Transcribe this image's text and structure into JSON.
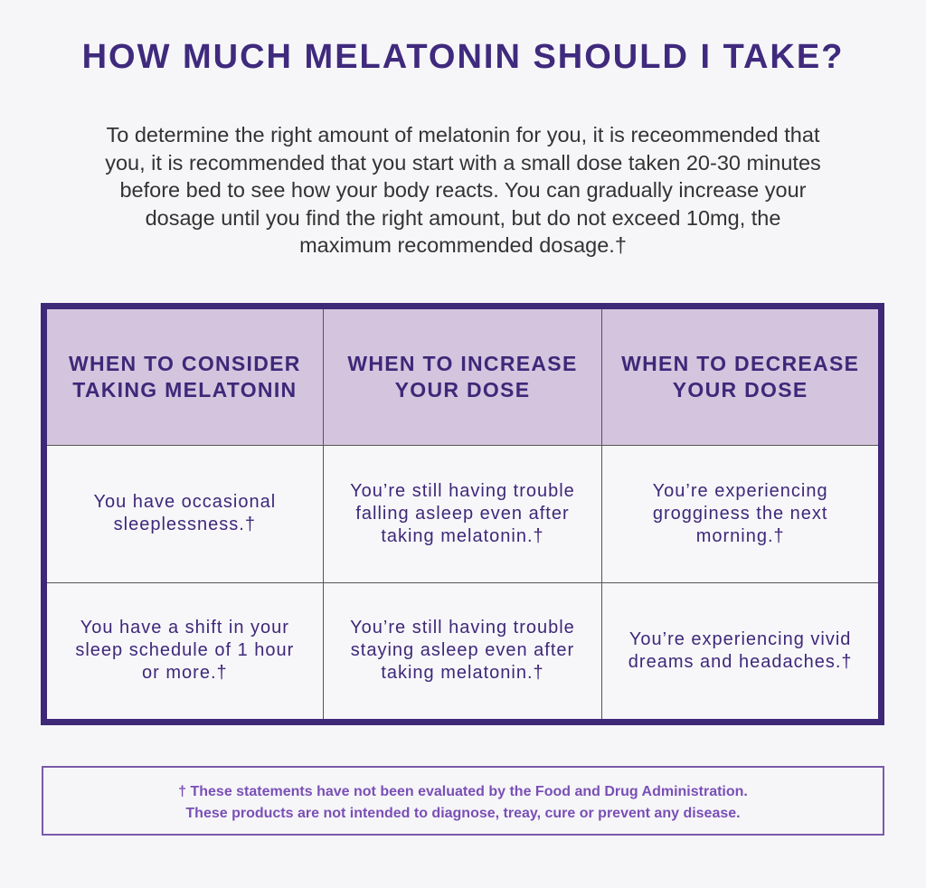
{
  "header": {
    "title": "HOW MUCH MELATONIN SHOULD I TAKE?"
  },
  "intro": {
    "lines": [
      "To determine the right amount of melatonin for you, it is receommended that",
      "you, it is recommended that you start with a small dose taken 20-30 minutes",
      "before bed to see how your body reacts. You can gradually increase your",
      "dosage until you find the right amount, but do not exceed 10mg, the",
      "maximum recommended dosage.†"
    ]
  },
  "table": {
    "header": [
      "WHEN TO CONSIDER TAKING MELATONIN",
      "WHEN TO INCREASE YOUR DOSE",
      "WHEN TO DECREASE YOUR DOSE"
    ],
    "rows": [
      [
        "You have occasional sleeplessness.†",
        "You’re still having trouble falling asleep even after taking melatonin.†",
        "You’re experiencing grogginess the next morning.†"
      ],
      [
        "You have a shift in your sleep schedule of 1 hour or more.†",
        "You’re still having trouble staying asleep even after taking melatonin.†",
        "You’re experiencing vivid dreams and headaches.†"
      ]
    ]
  },
  "footnote": {
    "lines": [
      "† These statements have not been evaluated by the Food and Drug Administration.",
      "These products are not intended to diagnose, treay, cure or prevent any disease."
    ]
  }
}
